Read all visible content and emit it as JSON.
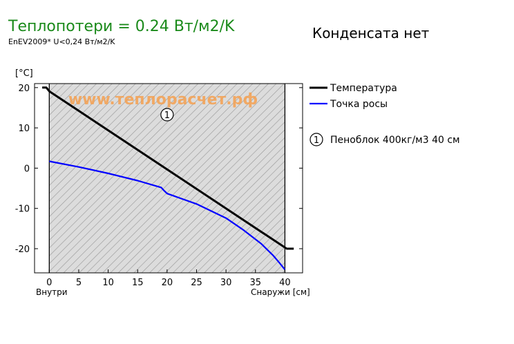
{
  "header": {
    "title": "Теплопотери = 0.24 Вт/м2/K",
    "subtitle": "EnEV2009* U<0,24 Вт/м2/K",
    "condensate": "Конденсата нет"
  },
  "colors": {
    "title": "#1a8a1a",
    "temperature": "#000000",
    "dew_point": "#0000ff",
    "watermark": "#f5a050",
    "layer_fill": "#dcdcdc",
    "hatch": "#9a9a9a"
  },
  "chart_data": {
    "type": "line",
    "ylabel": "[°C]",
    "xlabel_left": "Внутри",
    "xlabel_right": "Снаружи [см]",
    "xlim": [
      -2.5,
      43
    ],
    "ylim": [
      -26,
      21
    ],
    "xticks": [
      0,
      5,
      10,
      15,
      20,
      25,
      30,
      35,
      40
    ],
    "yticks": [
      20,
      10,
      0,
      -10,
      -20
    ],
    "grid": false,
    "legend_position": "right",
    "watermark": "www.теплорасчет.рф",
    "layers": [
      {
        "marker": "1",
        "name": "Пенoблок 400кг/м3 40 см",
        "x_start": 0,
        "x_end": 40
      }
    ],
    "series": [
      {
        "name": "Температура",
        "color": "#000000",
        "x": [
          -1.2,
          -0.5,
          0,
          40,
          40.3,
          41.5
        ],
        "y": [
          20,
          20,
          19.1,
          -19.7,
          -20,
          -20
        ]
      },
      {
        "name": "Точка росы",
        "color": "#0000ff",
        "x": [
          0,
          5,
          10,
          15,
          19,
          19.5,
          20,
          25,
          30,
          33,
          36,
          38,
          39,
          40
        ],
        "y": [
          1.7,
          0.3,
          -1.3,
          -3.1,
          -4.8,
          -5.6,
          -6.3,
          -8.9,
          -12.4,
          -15.4,
          -18.8,
          -21.7,
          -23.4,
          -25.2
        ]
      }
    ]
  }
}
